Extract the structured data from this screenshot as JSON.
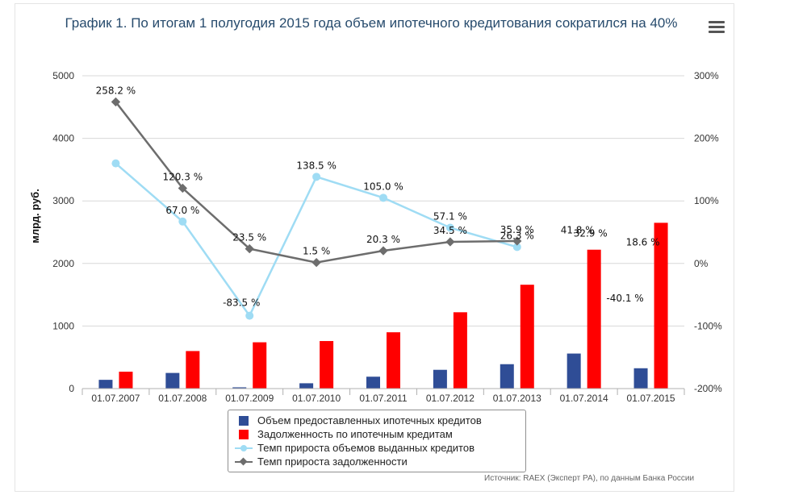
{
  "colors": {
    "volume_bar": "#2f4d96",
    "debt_bar": "#ff0000",
    "volume_growth": "#9fdcf4",
    "debt_growth": "#6d6d6d",
    "grid": "#d8d8d8",
    "title": "#274b6d"
  },
  "header": {
    "title": "График 1. По итогам 1 полугодия 2015 года объем ипотечного кредитования сократился на 40%",
    "menu_icon": "hamburger-menu-icon"
  },
  "source_note": "Источник: RAEX (Эксперт РА), по данным Банка России",
  "chart_data": {
    "type": "bar",
    "title": "График 1. По итогам 1 полугодия 2015 года объем ипотечного кредитования сократился на 40%",
    "categories": [
      "01.07.2007",
      "01.07.2008",
      "01.07.2009",
      "01.07.2010",
      "01.07.2011",
      "01.07.2012",
      "01.07.2013",
      "01.07.2014",
      "01.07.2015"
    ],
    "ylabel": "млрд. руб.",
    "ylim": [
      0,
      5000
    ],
    "y_ticks": [
      "0",
      "1000",
      "2000",
      "3000",
      "4000",
      "5000"
    ],
    "y2lim": [
      -200,
      300
    ],
    "y2_ticks": [
      "-200%",
      "-100%",
      "0%",
      "100%",
      "200%",
      "300%"
    ],
    "grid": true,
    "legend_position": "bottom",
    "series": [
      {
        "name": "Объем предоставленных ипотечных кредитов",
        "type": "bar",
        "axis": "left",
        "values": [
          140,
          250,
          20,
          85,
          190,
          300,
          390,
          560,
          325
        ]
      },
      {
        "name": "Задолженность по ипотечным кредитам",
        "type": "bar",
        "axis": "left",
        "values": [
          270,
          600,
          740,
          760,
          900,
          1220,
          1660,
          2220,
          2650
        ]
      },
      {
        "name": "Темп прироста объемов выданных кредитов",
        "type": "line",
        "axis": "right",
        "marker": "circle",
        "values": [
          160,
          67.0,
          -83.5,
          138.5,
          105.0,
          57.1,
          26.3,
          41.8,
          -40.1
        ],
        "labels": [
          "",
          "67.0 %",
          "-83.5 %",
          "138.5 %",
          "105.0 %",
          "57.1 %",
          "26.3 %",
          "41.8 %",
          "-40.1 %"
        ],
        "plotted_points": 7
      },
      {
        "name": "Темп прироста задолженности",
        "type": "line",
        "axis": "right",
        "marker": "diamond",
        "values": [
          258.2,
          120.3,
          23.5,
          1.5,
          20.3,
          34.5,
          35.9,
          32.9,
          18.6
        ],
        "labels": [
          "258.2 %",
          "120.3 %",
          "23.5 %",
          "1.5 %",
          "20.3 %",
          "34.5 %",
          "35.9 %",
          "32.9 %",
          "18.6 %"
        ],
        "plotted_points": 7
      }
    ]
  }
}
